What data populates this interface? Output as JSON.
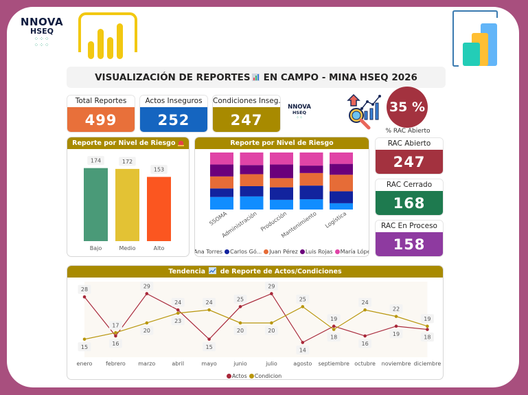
{
  "header": {
    "brand_line1": "NNOVA",
    "brand_line2": "HSEQ",
    "brand_icon": "nnova-hseq-logo",
    "left_app_icon": "power-bi-icon",
    "right_app_icon": "bar-chart-app-icon",
    "title_part1": "VISUALIZACIÓN DE REPORTES",
    "title_icon": "bar-chart-emoji-icon",
    "title_part2": "EN CAMPO - MINA HSEQ 2026"
  },
  "kpis": [
    {
      "label": "Total Reportes",
      "value": "499",
      "color": "#e8703a"
    },
    {
      "label": "Actos Inseguros",
      "value": "252",
      "color": "#1565c0"
    },
    {
      "label": "Condiciones Inseg.",
      "value": "247",
      "color": "#a88a00"
    }
  ],
  "small_logo": {
    "line1": "NNOVA",
    "line2": "HSEQ"
  },
  "analytics_icon": "search-analytics-icon",
  "rac_percent": {
    "value": "35 %",
    "label": "% RAC Abierto",
    "color": "#a3323f"
  },
  "rac_cards": [
    {
      "label": "RAC Abierto",
      "value": "247",
      "color": "#a3323f"
    },
    {
      "label": "RAC Cerrado",
      "value": "168",
      "color": "#1e7a4f"
    },
    {
      "label": "RAC En Proceso",
      "value": "158",
      "color": "#8e3aa0"
    }
  ],
  "chart_data": [
    {
      "type": "bar",
      "title": "Reporte por Nivel de Riesgo",
      "title_icon": "siren-icon",
      "categories": [
        "Bajo",
        "Medio",
        "Alto"
      ],
      "values": [
        174,
        172,
        153
      ],
      "colors": [
        "#4a9a78",
        "#e3c234",
        "#fb5620"
      ],
      "xlabel": "",
      "ylabel": "",
      "ylim": [
        0,
        180
      ]
    },
    {
      "type": "bar",
      "stacked": "percent",
      "title": "Reporte por Nivel de Riesgo",
      "categories": [
        "SSOMA",
        "Administración",
        "Producción",
        "Mantenimiento",
        "Logística"
      ],
      "series": [
        {
          "name": "Ana Torres",
          "legend_label": "Ana Torres",
          "color": "#118dff",
          "values": [
            22,
            23,
            17,
            18,
            11
          ]
        },
        {
          "name": "Carlos Gómez",
          "legend_label": "Carlos Gó...",
          "color": "#12239e",
          "values": [
            15,
            18,
            22,
            24,
            21
          ]
        },
        {
          "name": "Juan Pérez",
          "legend_label": "Juan Pérez",
          "color": "#e66c37",
          "values": [
            21,
            21,
            16,
            22,
            29
          ]
        },
        {
          "name": "Luis Rojas",
          "legend_label": "Luis Rojas",
          "color": "#6b007b",
          "values": [
            21,
            16,
            24,
            13,
            19
          ]
        },
        {
          "name": "María López",
          "legend_label": "María López",
          "color": "#e044a7",
          "values": [
            21,
            22,
            21,
            23,
            20
          ]
        }
      ],
      "legend_position": "bottom"
    },
    {
      "type": "line",
      "title": "Tendencia",
      "title_icon": "trend-chart-icon",
      "title_suffix": "de Reporte de Actos/Condiciones",
      "x": [
        "enero",
        "febrero",
        "marzo",
        "abril",
        "mayo",
        "junio",
        "julio",
        "agosto",
        "septiembre",
        "octubre",
        "noviembre",
        "diciembre"
      ],
      "series": [
        {
          "name": "Actos",
          "color": "#a8283a",
          "values": [
            28,
            16,
            29,
            24,
            15,
            25,
            29,
            14,
            19,
            16,
            19,
            18
          ]
        },
        {
          "name": "Condicion",
          "color": "#b8960c",
          "values": [
            15,
            17,
            20,
            23,
            24,
            20,
            20,
            25,
            18,
            24,
            22,
            19
          ]
        }
      ],
      "ylim": [
        12,
        31
      ],
      "legend_position": "bottom"
    }
  ]
}
